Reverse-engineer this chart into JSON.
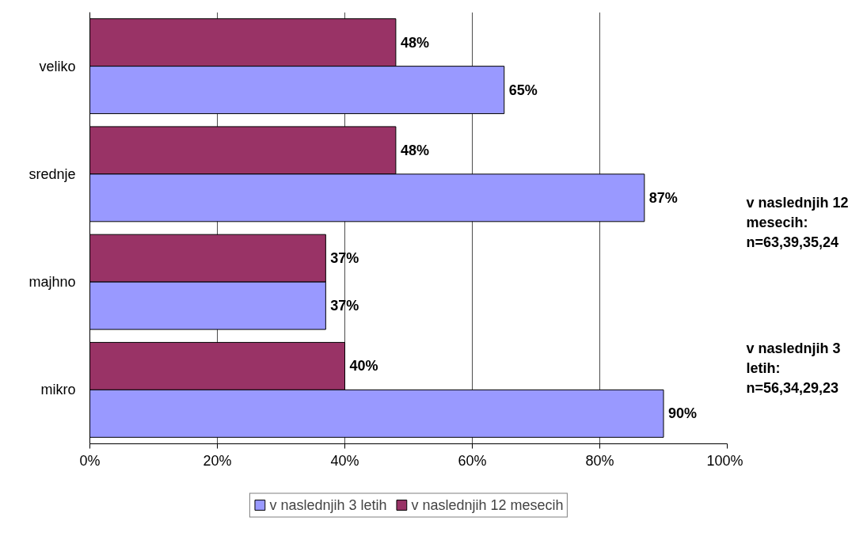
{
  "chart_data": {
    "type": "bar",
    "orientation": "horizontal",
    "categories": [
      "veliko",
      "srednje",
      "majhno",
      "mikro"
    ],
    "series": [
      {
        "name": "v naslednjih 12 mesecih",
        "color": "#993366",
        "values": [
          48,
          48,
          37,
          40
        ],
        "value_labels": [
          "48%",
          "48%",
          "37%",
          "40%"
        ]
      },
      {
        "name": "v naslednjih 3 letih",
        "color": "#9999ff",
        "values": [
          65,
          87,
          37,
          90
        ],
        "value_labels": [
          "65%",
          "87%",
          "37%",
          "90%"
        ]
      }
    ],
    "xlim": [
      0,
      100
    ],
    "xticks": [
      {
        "value": 0,
        "label": "0%"
      },
      {
        "value": 20,
        "label": "20%"
      },
      {
        "value": 40,
        "label": "40%"
      },
      {
        "value": 60,
        "label": "60%"
      },
      {
        "value": 80,
        "label": "80%"
      },
      {
        "value": 100,
        "label": "100%"
      }
    ],
    "grid": "x",
    "legend": "bottom",
    "annotations": [
      "v naslednjih 12 mesecih: n=63,39,35,24",
      "v naslednjih 3 letih: n=56,34,29,23"
    ]
  }
}
